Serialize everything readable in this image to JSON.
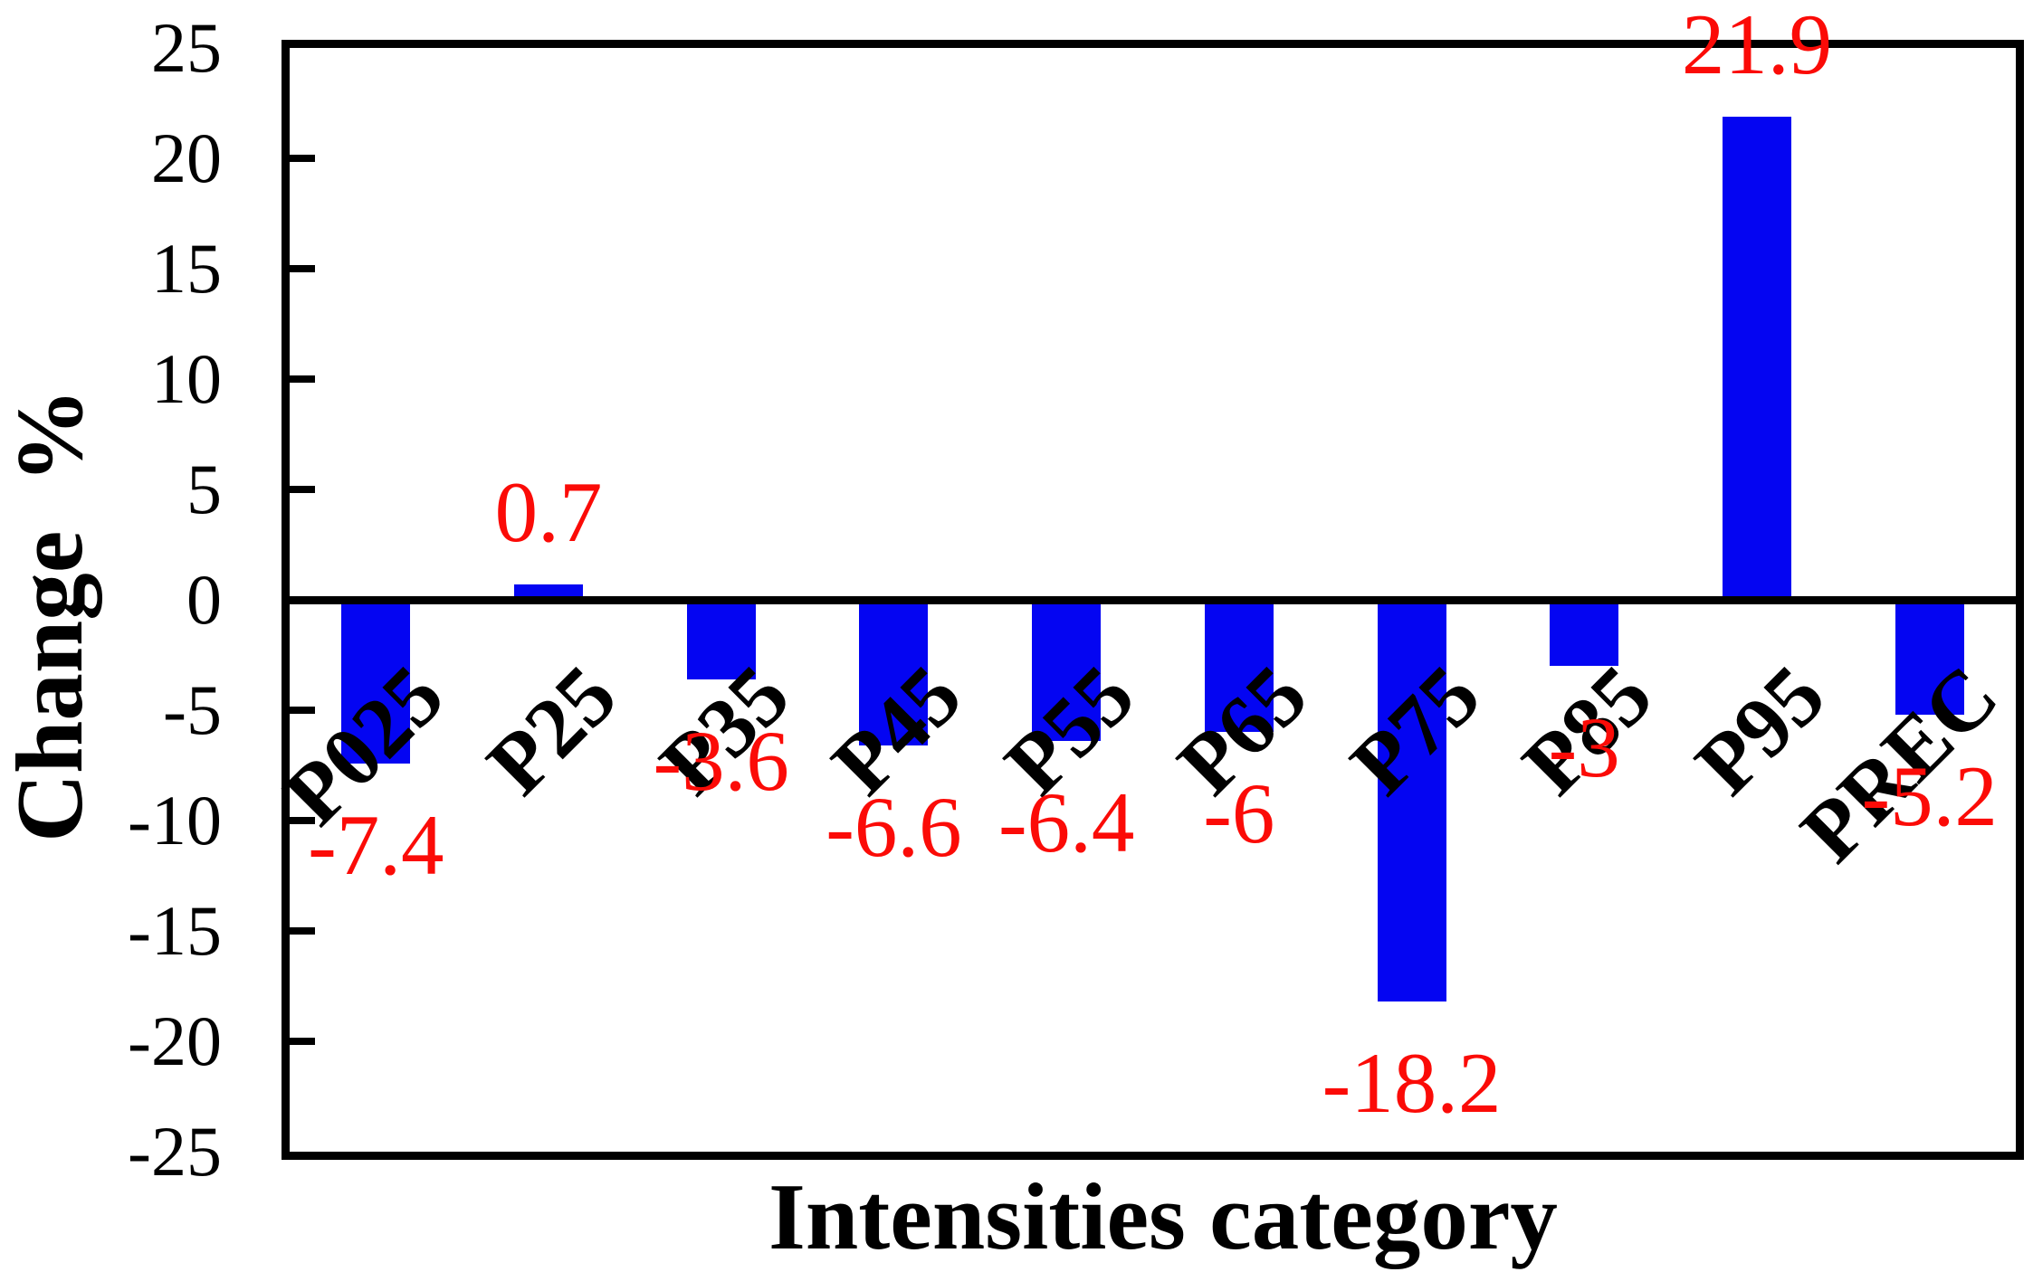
{
  "chart_data": {
    "type": "bar",
    "title": "",
    "xlabel": "Intensities category",
    "ylabel": "Change  %",
    "categories": [
      "P025",
      "P25",
      "P35",
      "P45",
      "P55",
      "P65",
      "P75",
      "P85",
      "P95",
      "PREC"
    ],
    "values": [
      -7.4,
      0.7,
      -3.6,
      -6.6,
      -6.4,
      -6,
      -18.2,
      -3,
      21.9,
      -5.2
    ],
    "value_labels": [
      "-7.4",
      "0.7",
      "-3.6",
      "-6.6",
      "-6.4",
      "-6",
      "-18.2",
      "-3",
      "21.9",
      "-5.2"
    ],
    "yticks": [
      25,
      20,
      15,
      10,
      5,
      0,
      -5,
      -10,
      -15,
      -20,
      -25
    ],
    "ylim": [
      -25,
      25
    ],
    "grid": false,
    "legend": false,
    "bar_color": "#0405f2",
    "value_label_color": "#fb0b07",
    "axis_color": "#000000"
  }
}
